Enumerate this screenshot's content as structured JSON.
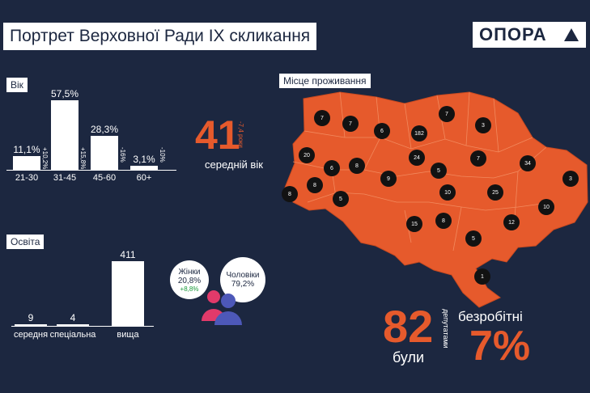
{
  "title": "Портрет Верховної Ради IX скликання",
  "logo": {
    "text": "ОПОРА",
    "icon": "triangle-icon"
  },
  "colors": {
    "background": "#1c2740",
    "accent": "#e65a2c",
    "bar": "#ffffff",
    "map_dot": "#121212"
  },
  "age": {
    "label": "Вік",
    "average_value": "41",
    "average_label": "середній вік",
    "average_delta": "-7,4 роки"
  },
  "education": {
    "label": "Освіта"
  },
  "gender": {
    "women": {
      "label": "Жінки",
      "value": "20,8%",
      "delta": "+8,8%"
    },
    "men": {
      "label": "Чоловіки",
      "value": "79,2%"
    }
  },
  "residence": {
    "label": "Місце проживання"
  },
  "unemployed": {
    "number": "82",
    "word_top": "депутатами",
    "word_bottom": "були",
    "label": "безробітні",
    "percent": "7%"
  },
  "chart_data": [
    {
      "type": "bar",
      "title": "Вік",
      "categories": [
        "21-30",
        "31-45",
        "45-60",
        "60+"
      ],
      "values": [
        11.1,
        57.5,
        28.3,
        3.1
      ],
      "value_labels": [
        "11,1%",
        "57,5%",
        "28,3%",
        "3,1%"
      ],
      "deltas": [
        "+10,2%",
        "+15,8%",
        "-16%",
        "-10%"
      ],
      "ylim": [
        0,
        57.5
      ]
    },
    {
      "type": "bar",
      "title": "Освіта",
      "categories": [
        "середня",
        "спеціальна",
        "вища"
      ],
      "values": [
        9,
        4,
        411
      ],
      "value_labels": [
        "9",
        "4",
        "411"
      ],
      "ylim": [
        0,
        411
      ]
    },
    {
      "type": "table",
      "title": "Місце проживання",
      "values": [
        "7",
        "7",
        "6",
        "182",
        "7",
        "3",
        "20",
        "6",
        "8",
        "24",
        "5",
        "7",
        "34",
        "9",
        "8",
        "10",
        "5",
        "25",
        "3",
        "10",
        "8",
        "15",
        "8",
        "12",
        "5",
        "1"
      ]
    }
  ]
}
